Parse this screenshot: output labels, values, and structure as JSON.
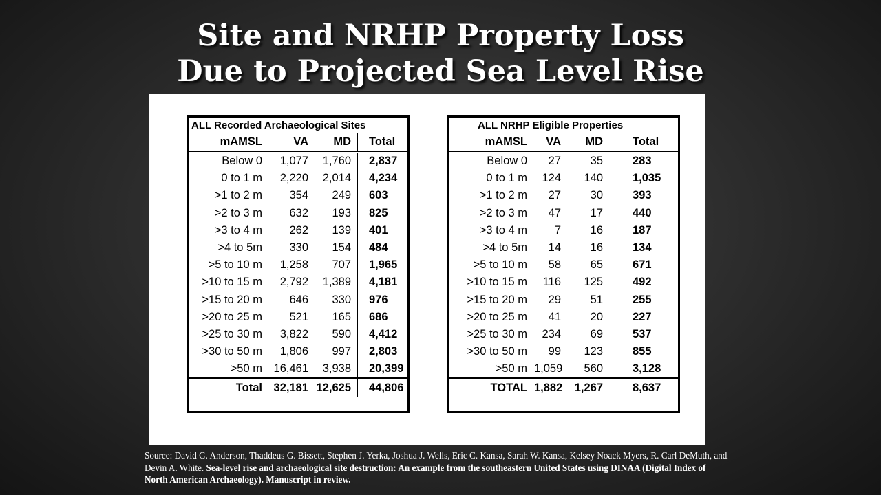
{
  "slide": {
    "title_line1": "Site and NRHP Property Loss",
    "title_line2": "Due to Projected Sea Level Rise"
  },
  "tables": {
    "sites": {
      "caption": "ALL Recorded Archaeological Sites",
      "headers": [
        "mAMSL",
        "VA",
        "MD",
        "Total"
      ],
      "rows": [
        [
          "Below 0",
          "1,077",
          "1,760",
          "2,837"
        ],
        [
          "0 to 1 m",
          "2,220",
          "2,014",
          "4,234"
        ],
        [
          ">1 to 2 m",
          "354",
          "249",
          "603"
        ],
        [
          ">2 to 3 m",
          "632",
          "193",
          "825"
        ],
        [
          ">3 to 4 m",
          "262",
          "139",
          "401"
        ],
        [
          ">4 to 5m",
          "330",
          "154",
          "484"
        ],
        [
          ">5 to 10 m",
          "1,258",
          "707",
          "1,965"
        ],
        [
          ">10 to 15 m",
          "2,792",
          "1,389",
          "4,181"
        ],
        [
          ">15 to 20 m",
          "646",
          "330",
          "976"
        ],
        [
          ">20 to 25 m",
          "521",
          "165",
          "686"
        ],
        [
          ">25 to 30 m",
          "3,822",
          "590",
          "4,412"
        ],
        [
          ">30 to 50 m",
          "1,806",
          "997",
          "2,803"
        ],
        [
          ">50 m",
          "16,461",
          "3,938",
          "20,399"
        ]
      ],
      "total": [
        "Total",
        "32,181",
        "12,625",
        "44,806"
      ]
    },
    "nrhp": {
      "caption": "ALL NRHP Eligible Properties",
      "headers": [
        "mAMSL",
        "VA",
        "MD",
        "Total"
      ],
      "rows": [
        [
          "Below 0",
          "27",
          "35",
          "283"
        ],
        [
          "0 to 1 m",
          "124",
          "140",
          "1,035"
        ],
        [
          ">1 to 2 m",
          "27",
          "30",
          "393"
        ],
        [
          ">2 to 3 m",
          "47",
          "17",
          "440"
        ],
        [
          ">3 to 4 m",
          "7",
          "16",
          "187"
        ],
        [
          ">4 to 5m",
          "14",
          "16",
          "134"
        ],
        [
          ">5 to 10 m",
          "58",
          "65",
          "671"
        ],
        [
          ">10 to 15 m",
          "116",
          "125",
          "492"
        ],
        [
          ">15 to 20 m",
          "29",
          "51",
          "255"
        ],
        [
          ">20 to 25 m",
          "41",
          "20",
          "227"
        ],
        [
          ">25 to 30 m",
          "234",
          "69",
          "537"
        ],
        [
          ">30 to 50 m",
          "99",
          "123",
          "855"
        ],
        [
          ">50 m",
          "1,059",
          "560",
          "3,128"
        ]
      ],
      "total": [
        "TOTAL",
        "1,882",
        "1,267",
        "8,637"
      ]
    }
  },
  "source": {
    "authors": "Source: David G. Anderson, Thaddeus G. Bissett, Stephen J. Yerka, Joshua J. Wells, Eric C. Kansa, Sarah W. Kansa, Kelsey Noack Myers, R. Carl DeMuth, and Devin A. White.",
    "citation": "Sea-level rise and archaeological site destruction: An example from the southeastern United States using DINAA (Digital Index of North American Archaeology). Manuscript in review."
  },
  "colors": {
    "background": "#2e2e2e",
    "title_text": "#ffffff",
    "panel": "#ffffff",
    "table_text": "#000000"
  }
}
